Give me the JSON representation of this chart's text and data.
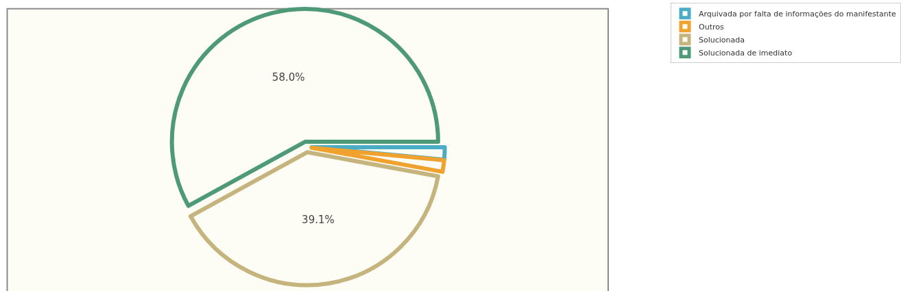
{
  "chart_data": {
    "type": "pie",
    "categories": [
      "Arquivada por falta de informações do manifestante",
      "Outros",
      "Solucionada",
      "Solucionada de imediato"
    ],
    "values": [
      1.5,
      1.4,
      39.1,
      58.0
    ],
    "colors": [
      "#4bacc6",
      "#f0a22e",
      "#c6b47e",
      "#4e9a78"
    ],
    "value_labels": [
      null,
      null,
      "39.1%",
      "58.0%"
    ],
    "legend": "top right"
  }
}
